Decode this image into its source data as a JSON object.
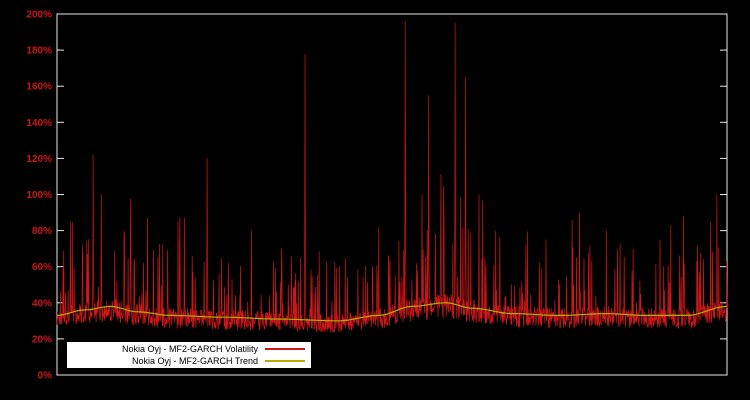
{
  "chart_data": {
    "type": "line",
    "title": "",
    "xlabel": "",
    "ylabel": "",
    "ylim": [
      0,
      200
    ],
    "xlim_visible_labels": false,
    "grid": false,
    "background": "#000000",
    "border_color": "#e8e8e8",
    "legend_position": "bottom-left",
    "yticks": [
      {
        "label": "0%",
        "value": 0
      },
      {
        "label": "20%",
        "value": 20
      },
      {
        "label": "40%",
        "value": 40
      },
      {
        "label": "60%",
        "value": 60
      },
      {
        "label": "80%",
        "value": 80
      },
      {
        "label": "100%",
        "value": 100
      },
      {
        "label": "120%",
        "value": 120
      },
      {
        "label": "140%",
        "value": 140
      },
      {
        "label": "160%",
        "value": 160
      },
      {
        "label": "180%",
        "value": 180
      },
      {
        "label": "200%",
        "value": 200
      }
    ],
    "series": [
      {
        "name": "Nokia Oyj - MF2-GARCH Volatility",
        "color": "#cd1719",
        "style": "dense-spiky-line"
      },
      {
        "name": "Nokia Oyj - MF2-GARCH Trend",
        "color": "#b5ad00",
        "style": "smooth-line"
      }
    ],
    "baseline_pct": {
      "min": 22,
      "typical": 32,
      "common_spike_max": 80
    },
    "trend_points": [
      [
        0.0,
        33
      ],
      [
        0.04,
        36
      ],
      [
        0.08,
        38
      ],
      [
        0.12,
        35
      ],
      [
        0.17,
        33
      ],
      [
        0.25,
        32
      ],
      [
        0.33,
        31
      ],
      [
        0.42,
        30
      ],
      [
        0.48,
        33
      ],
      [
        0.53,
        38
      ],
      [
        0.58,
        40
      ],
      [
        0.62,
        37
      ],
      [
        0.68,
        34
      ],
      [
        0.75,
        33
      ],
      [
        0.82,
        34
      ],
      [
        0.88,
        33
      ],
      [
        0.94,
        33
      ],
      [
        1.0,
        38
      ]
    ],
    "spikes": [
      {
        "x": 0.02,
        "peak": 85
      },
      {
        "x": 0.054,
        "peak": 122
      },
      {
        "x": 0.066,
        "peak": 100
      },
      {
        "x": 0.1,
        "peak": 80
      },
      {
        "x": 0.135,
        "peak": 87
      },
      {
        "x": 0.19,
        "peak": 87
      },
      {
        "x": 0.224,
        "peak": 120
      },
      {
        "x": 0.29,
        "peak": 80
      },
      {
        "x": 0.335,
        "peak": 70
      },
      {
        "x": 0.37,
        "peak": 178
      },
      {
        "x": 0.43,
        "peak": 65
      },
      {
        "x": 0.48,
        "peak": 82
      },
      {
        "x": 0.52,
        "peak": 196
      },
      {
        "x": 0.545,
        "peak": 100
      },
      {
        "x": 0.555,
        "peak": 155
      },
      {
        "x": 0.594,
        "peak": 195
      },
      {
        "x": 0.61,
        "peak": 165
      },
      {
        "x": 0.63,
        "peak": 100
      },
      {
        "x": 0.655,
        "peak": 80
      },
      {
        "x": 0.7,
        "peak": 72
      },
      {
        "x": 0.73,
        "peak": 75
      },
      {
        "x": 0.78,
        "peak": 90
      },
      {
        "x": 0.82,
        "peak": 80
      },
      {
        "x": 0.86,
        "peak": 70
      },
      {
        "x": 0.9,
        "peak": 75
      },
      {
        "x": 0.935,
        "peak": 88
      },
      {
        "x": 0.985,
        "peak": 100
      }
    ],
    "seed": 1337,
    "n_points": 1800
  },
  "legend": {
    "entries": [
      {
        "label": "Nokia Oyj - MF2-GARCH Volatility"
      },
      {
        "label": "Nokia Oyj - MF2-GARCH Trend"
      }
    ]
  }
}
